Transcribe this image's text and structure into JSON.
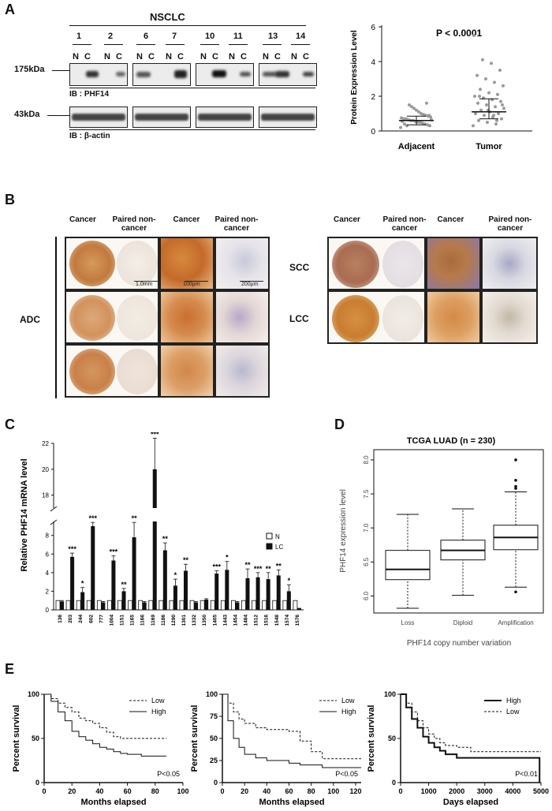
{
  "panels": {
    "a": "A",
    "b": "B",
    "c": "C",
    "d": "D",
    "e": "E"
  },
  "panel_a": {
    "group_label": "NSCLC",
    "patients": [
      "1",
      "2",
      "6",
      "7",
      "10",
      "11",
      "13",
      "14"
    ],
    "lane_n": "N",
    "lane_c": "C",
    "mw_top": "175kDa",
    "mw_bottom": "43kDa",
    "ib_top": "IB : PHF14",
    "ib_bottom": "IB : β-actin",
    "scatter": {
      "ylabel": "Protein  Expression Level",
      "yticks": [
        "0",
        "2",
        "4",
        "6"
      ],
      "pvalue": "P < 0.0001",
      "groups": [
        "Adjacent",
        "Tumor"
      ]
    }
  },
  "panel_b": {
    "col_cancer": "Cancer",
    "col_paired": "Paired non-cancer",
    "row_adc": "ADC",
    "row_scc": "SCC",
    "row_lcc": "LCC",
    "scale_1": "1.0mm",
    "scale_2": "100μm",
    "scale_3": "200μm"
  },
  "chart_data": [
    {
      "type": "bar",
      "ylabel": "Relative PHF14 mRNA level",
      "categories": [
        "136",
        "203",
        "244",
        "602",
        "777",
        "1004",
        "1151",
        "1165",
        "1166",
        "1169",
        "1186",
        "1290",
        "1301",
        "1332",
        "1350",
        "1405",
        "1443",
        "1454",
        "1484",
        "1512",
        "1516",
        "1548",
        "1574",
        "1576"
      ],
      "series": [
        {
          "name": "N",
          "values": [
            1,
            1,
            1,
            1,
            1,
            1,
            1,
            1,
            1,
            1,
            1,
            1,
            1,
            1,
            1,
            1,
            1,
            1,
            1,
            1,
            1,
            1,
            1,
            1
          ]
        },
        {
          "name": "LC",
          "values": [
            0.9,
            5.7,
            1.9,
            9.0,
            0.8,
            5.3,
            2.0,
            7.8,
            0.8,
            20.0,
            6.4,
            2.6,
            4.2,
            0.8,
            1.1,
            3.9,
            4.3,
            0.8,
            3.4,
            3.5,
            3.3,
            3.7,
            2.0,
            0.2
          ]
        }
      ],
      "errors": [
        0.1,
        0.4,
        0.5,
        0.4,
        0.1,
        0.5,
        0.3,
        1.6,
        0.1,
        2.4,
        0.8,
        0.7,
        0.7,
        0.1,
        0.1,
        0.3,
        0.9,
        0.1,
        1.0,
        0.5,
        0.7,
        0.6,
        0.7,
        0.1
      ],
      "significance": [
        "",
        "***",
        "*",
        "***",
        "",
        "***",
        "**",
        "**",
        "",
        "***",
        "**",
        "*",
        "**",
        "",
        "",
        "***",
        "*",
        "",
        "**",
        "***",
        "**",
        "**",
        "*",
        ""
      ],
      "yticks_lower": [
        "0",
        "2",
        "4",
        "6",
        "8"
      ],
      "yticks_upper": [
        "18",
        "20",
        "22"
      ],
      "ylim": [
        0,
        22
      ],
      "axis_break": [
        9.5,
        17
      ],
      "legend": [
        "N",
        "LC"
      ]
    },
    {
      "type": "box",
      "title": "TCGA LUAD (n = 230)",
      "ylabel": "PHF14 expression level",
      "xlabel": "PHF14 copy number variation",
      "categories": [
        "Loss",
        "Diploid",
        "Amplification"
      ],
      "boxes": [
        {
          "whisker_low": 5.82,
          "q1": 6.24,
          "median": 6.39,
          "q3": 6.67,
          "whisker_high": 7.2,
          "outliers": []
        },
        {
          "whisker_low": 6.01,
          "q1": 6.53,
          "median": 6.67,
          "q3": 6.82,
          "whisker_high": 7.28,
          "outliers": []
        },
        {
          "whisker_low": 6.13,
          "q1": 6.68,
          "median": 6.86,
          "q3": 7.04,
          "whisker_high": 7.53,
          "outliers": [
            6.06,
            7.58,
            7.61,
            7.7,
            8.0
          ]
        }
      ],
      "yticks": [
        "6.0",
        "6.5",
        "7.0",
        "7.5",
        "8.0"
      ],
      "ylim": [
        5.75,
        8.15
      ]
    },
    {
      "type": "line",
      "xlabel": "Months elapsed",
      "ylabel": "Percent survival",
      "xticks": [
        "0",
        "20",
        "40",
        "60",
        "80",
        "100"
      ],
      "yticks": [
        "0",
        "50",
        "100"
      ],
      "xlim": [
        0,
        100
      ],
      "ylim": [
        0,
        100
      ],
      "pvalue": "P<0.05",
      "series": [
        {
          "name": "Low",
          "style": "dashed",
          "x": [
            0,
            5,
            10,
            15,
            20,
            25,
            30,
            35,
            40,
            45,
            50,
            55,
            60,
            70,
            80,
            88
          ],
          "y": [
            100,
            95,
            90,
            85,
            80,
            73,
            70,
            67,
            62,
            57,
            52,
            50,
            50,
            50,
            50,
            50
          ]
        },
        {
          "name": "High",
          "style": "solid",
          "x": [
            0,
            5,
            10,
            15,
            20,
            25,
            30,
            35,
            40,
            45,
            50,
            55,
            60,
            70,
            80,
            88
          ],
          "y": [
            100,
            92,
            80,
            70,
            58,
            52,
            48,
            44,
            40,
            38,
            35,
            33,
            32,
            30,
            30,
            30
          ]
        }
      ]
    },
    {
      "type": "line",
      "xlabel": "Months elapsed",
      "ylabel": "Percent survival",
      "xticks": [
        "0",
        "20",
        "40",
        "60",
        "80",
        "100",
        "120"
      ],
      "yticks": [
        "0",
        "25",
        "50",
        "75",
        "100"
      ],
      "xlim": [
        0,
        125
      ],
      "ylim": [
        0,
        100
      ],
      "pvalue": "P<0.05",
      "series": [
        {
          "name": "Low",
          "style": "dashed",
          "x": [
            0,
            5,
            10,
            15,
            20,
            30,
            40,
            60,
            70,
            80,
            90,
            100,
            110,
            125
          ],
          "y": [
            100,
            90,
            80,
            72,
            67,
            62,
            60,
            58,
            47,
            35,
            27,
            27,
            27,
            27
          ]
        },
        {
          "name": "High",
          "style": "solid",
          "x": [
            0,
            5,
            10,
            15,
            20,
            30,
            40,
            60,
            70,
            80,
            90,
            100,
            110,
            125
          ],
          "y": [
            100,
            70,
            50,
            40,
            32,
            28,
            25,
            22,
            20,
            20,
            17,
            17,
            17,
            17
          ]
        }
      ]
    },
    {
      "type": "line",
      "xlabel": "Days elapsed",
      "ylabel": "Percent survival",
      "xticks": [
        "0",
        "1000",
        "2000",
        "3000",
        "4000",
        "5000"
      ],
      "yticks": [
        "0",
        "50",
        "100"
      ],
      "xlim": [
        0,
        5000
      ],
      "ylim": [
        0,
        100
      ],
      "pvalue": "P<0.01",
      "series": [
        {
          "name": "High",
          "style": "solid",
          "x": [
            0,
            200,
            400,
            600,
            800,
            1000,
            1200,
            1400,
            1600,
            2000,
            2500,
            3000,
            4000,
            4900,
            4950
          ],
          "y": [
            100,
            85,
            72,
            62,
            52,
            45,
            40,
            36,
            32,
            28,
            28,
            28,
            28,
            28,
            0
          ]
        },
        {
          "name": "Low",
          "style": "dashed",
          "x": [
            0,
            200,
            400,
            600,
            800,
            1000,
            1200,
            1400,
            1600,
            2000,
            2500,
            3000,
            4000,
            5000
          ],
          "y": [
            100,
            90,
            80,
            70,
            62,
            55,
            50,
            45,
            42,
            40,
            35,
            35,
            35,
            35
          ]
        }
      ]
    }
  ]
}
